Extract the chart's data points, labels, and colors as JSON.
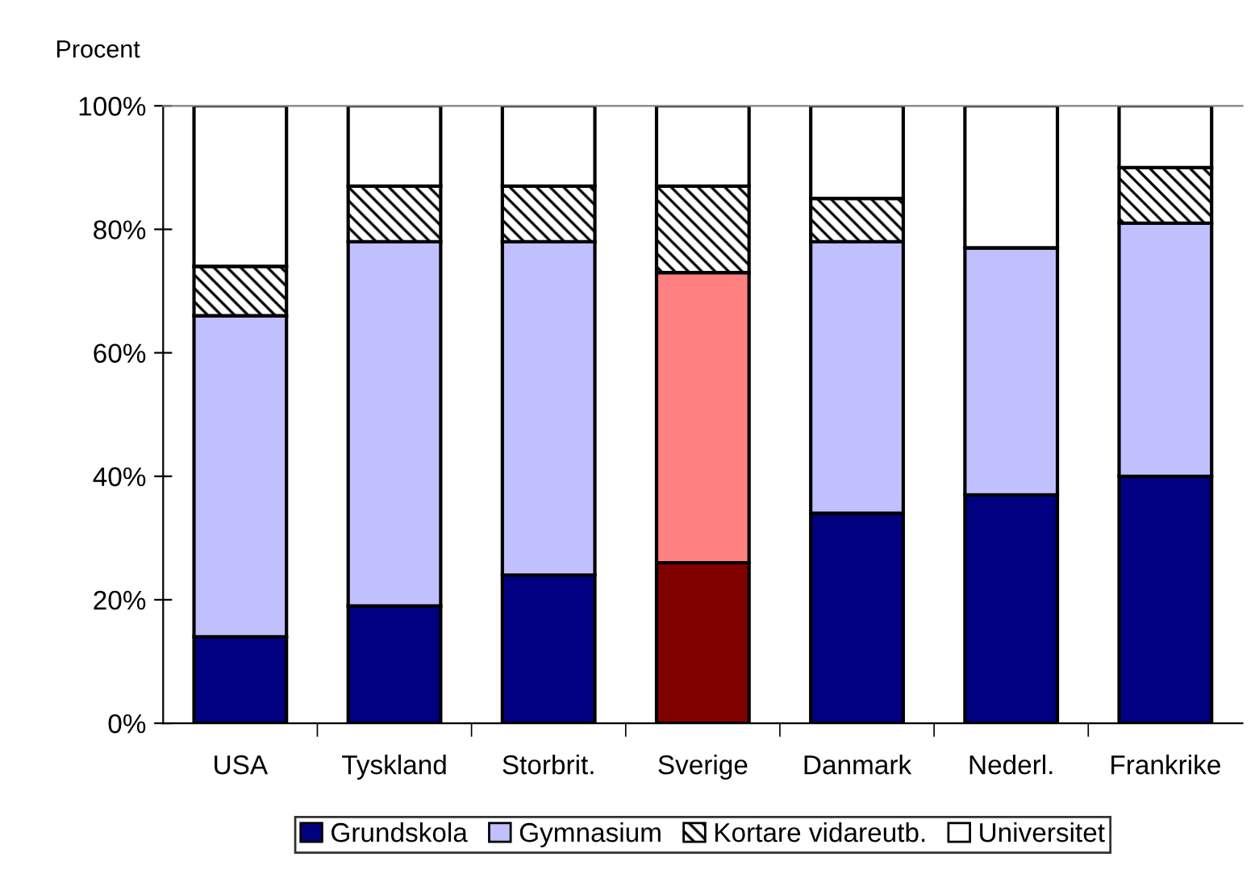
{
  "chart_data": {
    "type": "bar",
    "stacked": true,
    "ylabel": "Procent",
    "categories": [
      "USA",
      "Tyskland",
      "Storbrit.",
      "Sverige",
      "Danmark",
      "Nederl.",
      "Frankrike"
    ],
    "series": [
      {
        "name": "Grundskola",
        "color": "#000080",
        "colors": [
          "#000080",
          "#000080",
          "#000080",
          "#800000",
          "#000080",
          "#000080",
          "#000080"
        ],
        "values": [
          14,
          19,
          24,
          26,
          34,
          37,
          40
        ]
      },
      {
        "name": "Gymnasium",
        "color": "#c0c0ff",
        "colors": [
          "#c0c0ff",
          "#c0c0ff",
          "#c0c0ff",
          "#ff8080",
          "#c0c0ff",
          "#c0c0ff",
          "#c0c0ff"
        ],
        "values": [
          52,
          59,
          54,
          47,
          44,
          40,
          41
        ]
      },
      {
        "name": "Kortare vidareutb.",
        "color": "#000000",
        "values": [
          8,
          9,
          9,
          14,
          7,
          0,
          9
        ]
      },
      {
        "name": "Universitet",
        "color": "#ffffff",
        "values": [
          26,
          13,
          13,
          13,
          15,
          23,
          10
        ]
      }
    ],
    "ylim": [
      0,
      100
    ],
    "yticks": [
      {
        "value": 0,
        "label": "0%"
      },
      {
        "value": 20,
        "label": "20%"
      },
      {
        "value": 40,
        "label": "40%"
      },
      {
        "value": 60,
        "label": "60%"
      },
      {
        "value": 80,
        "label": "80%"
      },
      {
        "value": 100,
        "label": "100%"
      }
    ],
    "grid": false,
    "legend": "bottom"
  }
}
